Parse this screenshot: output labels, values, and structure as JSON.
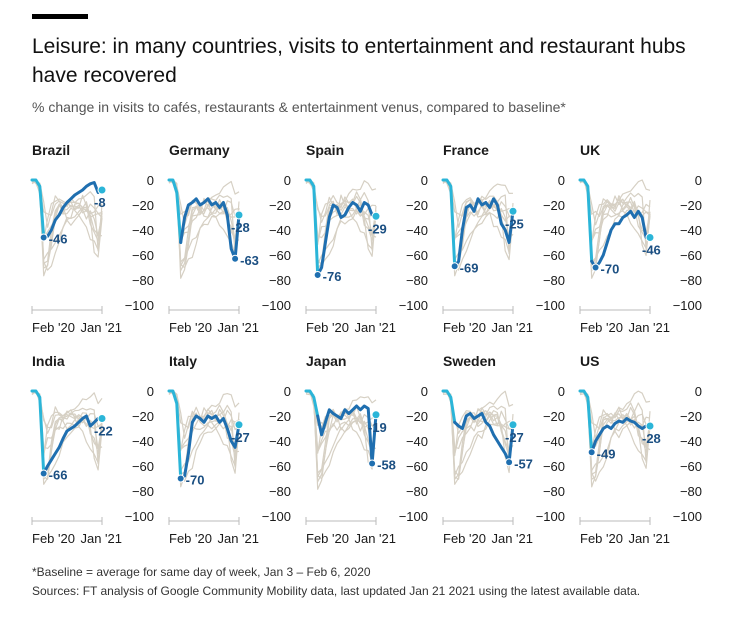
{
  "header": {
    "title": "Leisure: in many countries, visits to entertainment and restaurant hubs have recovered",
    "subtitle": "% change in visits to cafés, restaurants & entertainment venus, compared to baseline*"
  },
  "footer": {
    "note": "*Baseline = average for same day of week, Jan 3 – Feb 6, 2020",
    "source": "Sources: FT analysis of Google Community Mobility data, last updated Jan 21 2021 using the latest available data."
  },
  "colors": {
    "highlight": "#1f6fb0",
    "highlight_early": "#2bb5d8",
    "others": "#d6d0c4",
    "axis": "#bbbbbb",
    "text": "#1a1a1a"
  },
  "chart_data": {
    "type": "line",
    "description_units": "% change vs baseline",
    "ylim": [
      -100,
      0
    ],
    "yticks": [
      0,
      -20,
      -40,
      -60,
      -80,
      -100
    ],
    "xtick_labels": [
      "Feb '20",
      "Jan '21"
    ],
    "grid": false,
    "panels": [
      {
        "country": "Brazil",
        "min_label": "-46",
        "min_value": -46,
        "last_label": "-8",
        "last_value": -8,
        "values": [
          0,
          0,
          -5,
          -46,
          -45,
          -40,
          -32,
          -28,
          -22,
          -18,
          -15,
          -12,
          -10,
          -8,
          -5,
          -3,
          -2,
          -10,
          -8
        ]
      },
      {
        "country": "Germany",
        "min_label": "-63",
        "min_value": -63,
        "last_label": "-28",
        "last_value": -28,
        "values": [
          0,
          0,
          -10,
          -50,
          -30,
          -20,
          -18,
          -15,
          -20,
          -18,
          -15,
          -20,
          -18,
          -22,
          -18,
          -28,
          -55,
          -63,
          -28
        ]
      },
      {
        "country": "Spain",
        "min_label": "-76",
        "min_value": -76,
        "last_label": "-29",
        "last_value": -29,
        "values": [
          0,
          0,
          -5,
          -76,
          -70,
          -50,
          -30,
          -20,
          -22,
          -30,
          -28,
          -22,
          -18,
          -20,
          -25,
          -18,
          -20,
          -28,
          -29
        ]
      },
      {
        "country": "France",
        "min_label": "-69",
        "min_value": -69,
        "last_label": "-25",
        "last_value": -25,
        "values": [
          0,
          0,
          -5,
          -69,
          -65,
          -40,
          -22,
          -20,
          -25,
          -15,
          -20,
          -18,
          -22,
          -15,
          -20,
          -35,
          -40,
          -50,
          -25
        ]
      },
      {
        "country": "UK",
        "min_label": "-70",
        "min_value": -70,
        "last_label": "-46",
        "last_value": -46,
        "values": [
          0,
          0,
          -5,
          -65,
          -70,
          -66,
          -60,
          -50,
          -40,
          -35,
          -35,
          -30,
          -28,
          -25,
          -30,
          -25,
          -30,
          -46,
          -46
        ]
      },
      {
        "country": "India",
        "min_label": "-66",
        "min_value": -66,
        "last_label": "-22",
        "last_value": -22,
        "values": [
          0,
          0,
          -5,
          -66,
          -60,
          -55,
          -50,
          -45,
          -38,
          -32,
          -30,
          -28,
          -25,
          -22,
          -20,
          -28,
          -25,
          -22,
          -22
        ]
      },
      {
        "country": "Italy",
        "min_label": "-70",
        "min_value": -70,
        "last_label": "-27",
        "last_value": -27,
        "values": [
          0,
          0,
          -10,
          -70,
          -68,
          -50,
          -25,
          -20,
          -22,
          -25,
          -20,
          -22,
          -20,
          -25,
          -22,
          -30,
          -40,
          -45,
          -27
        ]
      },
      {
        "country": "Japan",
        "min_label": "-58",
        "min_value": -58,
        "last_label": "-19",
        "last_value": -19,
        "values": [
          0,
          0,
          -5,
          -20,
          -35,
          -25,
          -15,
          -18,
          -20,
          -22,
          -15,
          -18,
          -15,
          -12,
          -15,
          -12,
          -14,
          -58,
          -19
        ]
      },
      {
        "country": "Sweden",
        "min_label": "-57",
        "min_value": -57,
        "last_label": "-27",
        "last_value": -27,
        "values": [
          0,
          0,
          -5,
          -25,
          -28,
          -30,
          -20,
          -18,
          -22,
          -20,
          -18,
          -25,
          -28,
          -35,
          -40,
          -45,
          -50,
          -57,
          -27
        ]
      },
      {
        "country": "US",
        "min_label": "-49",
        "min_value": -49,
        "last_label": "-28",
        "last_value": -28,
        "values": [
          0,
          0,
          -5,
          -49,
          -40,
          -35,
          -30,
          -28,
          -30,
          -26,
          -24,
          -25,
          -22,
          -24,
          -25,
          -28,
          -30,
          -28,
          -28
        ]
      }
    ]
  }
}
